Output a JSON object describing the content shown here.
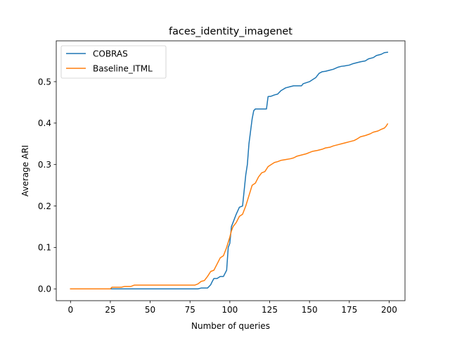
{
  "chart_data": {
    "type": "line",
    "title": "faces_identity_imagenet",
    "xlabel": "Number of queries",
    "ylabel": "Average ARI",
    "xlim": [
      -8.95,
      209.95
    ],
    "ylim": [
      -0.0285,
      0.5985
    ],
    "xticks": [
      0,
      25,
      50,
      75,
      100,
      125,
      150,
      175,
      200
    ],
    "yticks": [
      0.0,
      0.1,
      0.2,
      0.3,
      0.4,
      0.5
    ],
    "ytick_labels": [
      "0.0",
      "0.1",
      "0.2",
      "0.3",
      "0.4",
      "0.5"
    ],
    "grid": false,
    "legend_position": "upper left",
    "series": [
      {
        "name": "COBRAS",
        "color": "#1f77b4",
        "x": [
          0,
          30,
          80,
          82,
          86,
          88,
          89,
          90,
          92,
          94,
          96,
          98,
          99,
          100,
          101,
          102,
          104,
          106,
          108,
          110,
          111,
          112,
          113,
          114,
          115,
          116,
          118,
          120,
          123,
          124,
          126,
          128,
          130,
          132,
          135,
          138,
          140,
          145,
          146,
          150,
          152,
          154,
          156,
          158,
          160,
          163,
          165,
          168,
          170,
          172,
          175,
          177,
          180,
          182,
          185,
          187,
          190,
          192,
          195,
          197,
          199
        ],
        "y": [
          0.0,
          0.0,
          0.0,
          0.002,
          0.002,
          0.01,
          0.018,
          0.025,
          0.025,
          0.03,
          0.03,
          0.045,
          0.1,
          0.11,
          0.15,
          0.16,
          0.18,
          0.197,
          0.2,
          0.275,
          0.3,
          0.35,
          0.38,
          0.41,
          0.43,
          0.434,
          0.434,
          0.434,
          0.434,
          0.464,
          0.465,
          0.468,
          0.47,
          0.478,
          0.485,
          0.488,
          0.49,
          0.49,
          0.495,
          0.5,
          0.505,
          0.51,
          0.52,
          0.524,
          0.525,
          0.528,
          0.53,
          0.535,
          0.537,
          0.538,
          0.54,
          0.543,
          0.546,
          0.548,
          0.55,
          0.555,
          0.558,
          0.563,
          0.566,
          0.57,
          0.571
        ]
      },
      {
        "name": "Baseline_ITML",
        "color": "#ff7f0e",
        "x": [
          0,
          25,
          26,
          30,
          32,
          34,
          38,
          40,
          50,
          60,
          70,
          78,
          80,
          82,
          84,
          86,
          88,
          90,
          92,
          94,
          96,
          98,
          100,
          101,
          102,
          104,
          106,
          108,
          110,
          112,
          114,
          116,
          118,
          120,
          122,
          124,
          126,
          128,
          130,
          132,
          135,
          138,
          140,
          142,
          145,
          148,
          150,
          152,
          155,
          158,
          160,
          163,
          165,
          168,
          170,
          173,
          175,
          178,
          180,
          182,
          185,
          188,
          190,
          193,
          195,
          197,
          198,
          199
        ],
        "y": [
          0.0,
          0.0,
          0.004,
          0.004,
          0.004,
          0.006,
          0.006,
          0.009,
          0.009,
          0.009,
          0.009,
          0.009,
          0.012,
          0.018,
          0.02,
          0.03,
          0.042,
          0.045,
          0.06,
          0.075,
          0.08,
          0.1,
          0.125,
          0.14,
          0.15,
          0.16,
          0.175,
          0.18,
          0.2,
          0.225,
          0.25,
          0.255,
          0.27,
          0.28,
          0.283,
          0.295,
          0.3,
          0.305,
          0.307,
          0.31,
          0.312,
          0.314,
          0.316,
          0.32,
          0.323,
          0.326,
          0.329,
          0.332,
          0.334,
          0.337,
          0.34,
          0.342,
          0.345,
          0.348,
          0.35,
          0.353,
          0.355,
          0.358,
          0.362,
          0.367,
          0.37,
          0.374,
          0.378,
          0.381,
          0.385,
          0.388,
          0.392,
          0.398
        ]
      }
    ]
  }
}
